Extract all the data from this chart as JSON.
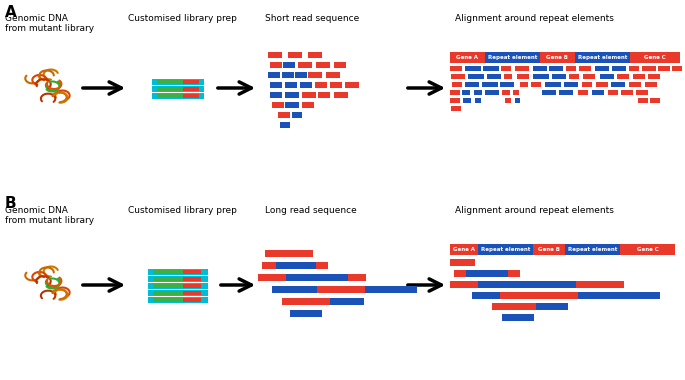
{
  "bg_color": "#ffffff",
  "red": "#e8392a",
  "blue": "#1a52b8",
  "green": "#3cb043",
  "cyan": "#00bcd4",
  "label_A": "A",
  "label_B": "B",
  "text_genomic": "Genomic DNA\nfrom mutant library",
  "text_lib_prep": "Customised library prep",
  "text_short_read": "Short read sequence",
  "text_long_read": "Long read sequence",
  "text_alignment": "Alignment around repeat elements"
}
